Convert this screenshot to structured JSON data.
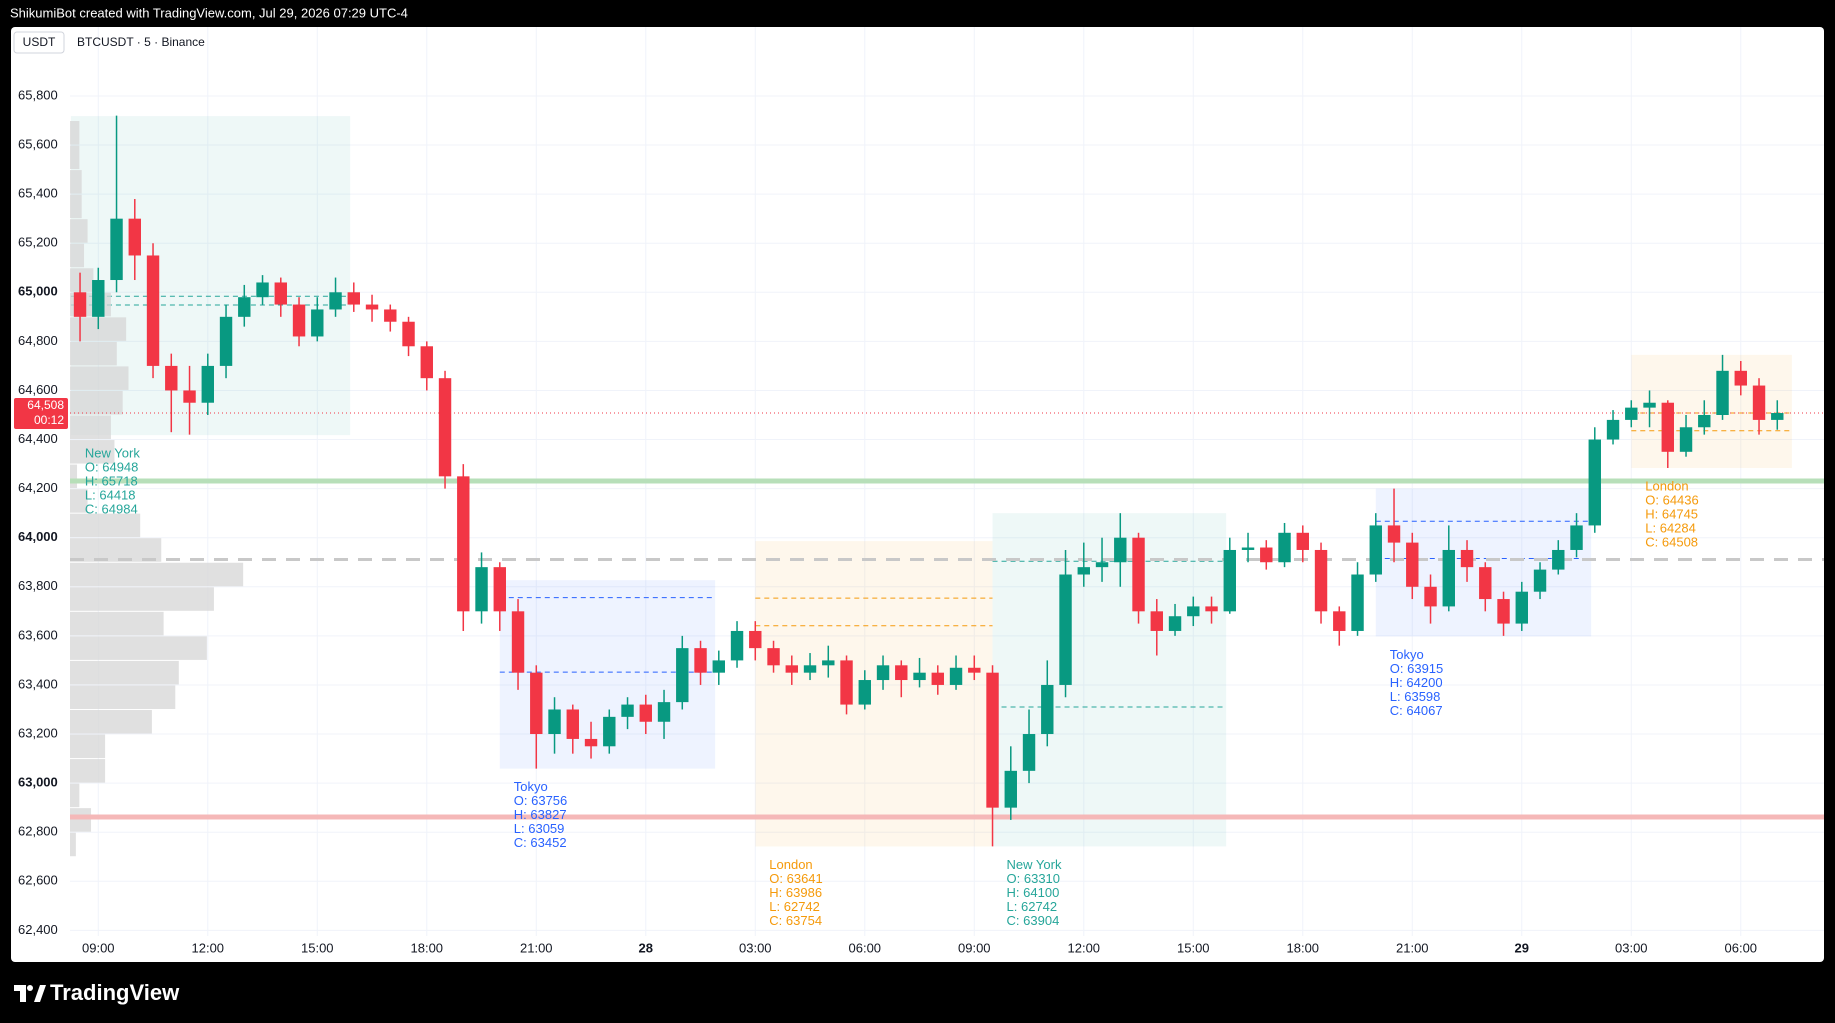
{
  "header": {
    "credit": "ShikumiBot created with TradingView.com, Jul 29, 2026 07:29 UTC-4",
    "currency": "USDT",
    "symbol": "BTCUSDT · 5 · Binance"
  },
  "footer": {
    "brand": "TradingView"
  },
  "chart_data": {
    "type": "candlestick",
    "colors": {
      "up": "#089981",
      "down": "#f23645"
    },
    "grid": true,
    "xlim": [
      -0.775,
      47.28
    ],
    "ylim": [
      62377,
      66081
    ],
    "xticks": [
      {
        "value": 0,
        "label": "09:00"
      },
      {
        "value": 3,
        "label": "12:00"
      },
      {
        "value": 6,
        "label": "15:00"
      },
      {
        "value": 9,
        "label": "18:00"
      },
      {
        "value": 12,
        "label": "21:00"
      },
      {
        "value": 15,
        "label": "28"
      },
      {
        "value": 18,
        "label": "03:00"
      },
      {
        "value": 21,
        "label": "06:00"
      },
      {
        "value": 24,
        "label": "09:00"
      },
      {
        "value": 27,
        "label": "12:00"
      },
      {
        "value": 30,
        "label": "15:00"
      },
      {
        "value": 33,
        "label": "18:00"
      },
      {
        "value": 36,
        "label": "21:00"
      },
      {
        "value": 39,
        "label": "29"
      },
      {
        "value": 42,
        "label": "03:00"
      },
      {
        "value": 45,
        "label": "06:00"
      }
    ],
    "yticks": [
      {
        "value": 62400,
        "label": "62,400"
      },
      {
        "value": 62600,
        "label": "62,600"
      },
      {
        "value": 62800,
        "label": "62,800"
      },
      {
        "value": 63000,
        "label": "63,000"
      },
      {
        "value": 63200,
        "label": "63,200"
      },
      {
        "value": 63400,
        "label": "63,400"
      },
      {
        "value": 63600,
        "label": "63,600"
      },
      {
        "value": 63800,
        "label": "63,800"
      },
      {
        "value": 64000,
        "label": "64,000"
      },
      {
        "value": 64200,
        "label": "64,200"
      },
      {
        "value": 64400,
        "label": "64,400"
      },
      {
        "value": 64600,
        "label": "64,600"
      },
      {
        "value": 64800,
        "label": "64,800"
      },
      {
        "value": 65000,
        "label": "65,000"
      },
      {
        "value": 65200,
        "label": "65,200"
      },
      {
        "value": 65400,
        "label": "65,400"
      },
      {
        "value": 65600,
        "label": "65,600"
      },
      {
        "value": 65800,
        "label": "65,800"
      }
    ],
    "x": [
      -0.5,
      0,
      0.5,
      1,
      1.5,
      2,
      2.5,
      3,
      3.5,
      4,
      4.5,
      5,
      5.5,
      6,
      6.5,
      7,
      7.5,
      8,
      8.5,
      9,
      9.5,
      10,
      10.5,
      11,
      11.5,
      12,
      12.5,
      13,
      13.5,
      14,
      14.5,
      15,
      15.5,
      16,
      16.5,
      17,
      17.5,
      18,
      18.5,
      19,
      19.5,
      20,
      20.5,
      21,
      21.5,
      22,
      22.5,
      23,
      23.5,
      24,
      24.5,
      25,
      25.5,
      26,
      26.5,
      27,
      27.5,
      28,
      28.5,
      29,
      29.5,
      30,
      30.5,
      31,
      31.5,
      32,
      32.5,
      33,
      33.5,
      34,
      34.5,
      35,
      35.5,
      36,
      36.5,
      37,
      37.5,
      38,
      38.5,
      39,
      39.5,
      40,
      40.5,
      41,
      41.5,
      42,
      42.5,
      43,
      43.5,
      44,
      44.5,
      45,
      45.5,
      46
    ],
    "ohlc": [
      [
        65000,
        65080,
        64800,
        64900
      ],
      [
        64900,
        65100,
        64850,
        65050
      ],
      [
        65050,
        65720,
        65000,
        65300
      ],
      [
        65300,
        65380,
        65050,
        65150
      ],
      [
        65150,
        65200,
        64650,
        64700
      ],
      [
        64700,
        64750,
        64430,
        64600
      ],
      [
        64600,
        64700,
        64420,
        64550
      ],
      [
        64550,
        64750,
        64500,
        64700
      ],
      [
        64700,
        64950,
        64650,
        64900
      ],
      [
        64900,
        65030,
        64860,
        64980
      ],
      [
        64980,
        65070,
        64950,
        65040
      ],
      [
        65040,
        65060,
        64900,
        64950
      ],
      [
        64950,
        64980,
        64780,
        64820
      ],
      [
        64820,
        64980,
        64800,
        64930
      ],
      [
        64930,
        65060,
        64900,
        65000
      ],
      [
        65000,
        65040,
        64920,
        64950
      ],
      [
        64950,
        64990,
        64880,
        64930
      ],
      [
        64930,
        64950,
        64840,
        64880
      ],
      [
        64880,
        64900,
        64740,
        64780
      ],
      [
        64780,
        64800,
        64600,
        64650
      ],
      [
        64650,
        64680,
        64200,
        64250
      ],
      [
        64250,
        64300,
        63620,
        63700
      ],
      [
        63700,
        63940,
        63650,
        63880
      ],
      [
        63880,
        63900,
        63620,
        63700
      ],
      [
        63700,
        63750,
        63380,
        63450
      ],
      [
        63450,
        63480,
        63059,
        63200
      ],
      [
        63200,
        63350,
        63120,
        63300
      ],
      [
        63300,
        63320,
        63120,
        63180
      ],
      [
        63180,
        63250,
        63100,
        63150
      ],
      [
        63150,
        63300,
        63120,
        63270
      ],
      [
        63270,
        63350,
        63220,
        63320
      ],
      [
        63320,
        63360,
        63200,
        63250
      ],
      [
        63250,
        63380,
        63180,
        63330
      ],
      [
        63330,
        63600,
        63300,
        63550
      ],
      [
        63550,
        63580,
        63400,
        63450
      ],
      [
        63450,
        63540,
        63400,
        63500
      ],
      [
        63500,
        63660,
        63470,
        63620
      ],
      [
        63620,
        63660,
        63500,
        63550
      ],
      [
        63550,
        63580,
        63450,
        63480
      ],
      [
        63480,
        63520,
        63400,
        63450
      ],
      [
        63450,
        63530,
        63420,
        63480
      ],
      [
        63480,
        63560,
        63430,
        63500
      ],
      [
        63500,
        63520,
        63280,
        63320
      ],
      [
        63320,
        63460,
        63300,
        63420
      ],
      [
        63420,
        63520,
        63380,
        63480
      ],
      [
        63480,
        63500,
        63350,
        63420
      ],
      [
        63420,
        63510,
        63390,
        63450
      ],
      [
        63450,
        63480,
        63360,
        63400
      ],
      [
        63400,
        63520,
        63380,
        63470
      ],
      [
        63470,
        63520,
        63420,
        63450
      ],
      [
        63450,
        63480,
        62742,
        62900
      ],
      [
        62900,
        63150,
        62850,
        63050
      ],
      [
        63050,
        63300,
        63000,
        63200
      ],
      [
        63200,
        63500,
        63150,
        63400
      ],
      [
        63400,
        63950,
        63350,
        63850
      ],
      [
        63850,
        63980,
        63800,
        63880
      ],
      [
        63880,
        64000,
        63820,
        63900
      ],
      [
        63900,
        64100,
        63800,
        64000
      ],
      [
        64000,
        64020,
        63650,
        63700
      ],
      [
        63700,
        63750,
        63520,
        63620
      ],
      [
        63620,
        63730,
        63600,
        63680
      ],
      [
        63680,
        63760,
        63640,
        63720
      ],
      [
        63720,
        63760,
        63650,
        63700
      ],
      [
        63700,
        64000,
        63690,
        63950
      ],
      [
        63950,
        64020,
        63900,
        63960
      ],
      [
        63960,
        63990,
        63870,
        63900
      ],
      [
        63900,
        64060,
        63880,
        64020
      ],
      [
        64020,
        64050,
        63900,
        63950
      ],
      [
        63950,
        63980,
        63650,
        63700
      ],
      [
        63700,
        63720,
        63560,
        63620
      ],
      [
        63620,
        63900,
        63600,
        63850
      ],
      [
        63850,
        64100,
        63820,
        64050
      ],
      [
        64050,
        64200,
        63900,
        63980
      ],
      [
        63980,
        64020,
        63750,
        63800
      ],
      [
        63800,
        63850,
        63650,
        63720
      ],
      [
        63720,
        64050,
        63700,
        63950
      ],
      [
        63950,
        63990,
        63820,
        63880
      ],
      [
        63880,
        63900,
        63700,
        63750
      ],
      [
        63750,
        63780,
        63600,
        63650
      ],
      [
        63650,
        63820,
        63620,
        63780
      ],
      [
        63780,
        63900,
        63750,
        63870
      ],
      [
        63870,
        63990,
        63850,
        63950
      ],
      [
        63950,
        64100,
        63920,
        64050
      ],
      [
        64050,
        64450,
        64020,
        64400
      ],
      [
        64400,
        64520,
        64380,
        64480
      ],
      [
        64480,
        64560,
        64450,
        64530
      ],
      [
        64530,
        64600,
        64450,
        64550
      ],
      [
        64550,
        64560,
        64284,
        64350
      ],
      [
        64350,
        64500,
        64330,
        64450
      ],
      [
        64450,
        64560,
        64420,
        64500
      ],
      [
        64500,
        64745,
        64480,
        64680
      ],
      [
        64680,
        64720,
        64580,
        64620
      ],
      [
        64620,
        64650,
        64420,
        64480
      ],
      [
        64480,
        64560,
        64440,
        64508
      ]
    ],
    "price_tag": {
      "value": 64508,
      "label": "64,508",
      "countdown": "00:12",
      "color": "#f23645"
    },
    "levels": [
      {
        "value": 64231,
        "color": "#b7dfb9"
      },
      {
        "value": 62862,
        "color": "#f5b8b8"
      },
      {
        "value": 63911,
        "color": "#c8c8c8",
        "dashed": true
      }
    ],
    "volume_profile": {
      "color": "#d6d6d6",
      "bins": [
        62700,
        62800,
        62900,
        63000,
        63100,
        63200,
        63300,
        63400,
        63500,
        63600,
        63700,
        63800,
        63900,
        64000,
        64100,
        64200,
        64300,
        64400,
        64500,
        64600,
        64700,
        64800,
        64900,
        65000,
        65100,
        65200,
        65300,
        65400,
        65500,
        65600,
        65700
      ],
      "values": [
        5,
        18,
        8,
        30,
        30,
        70,
        90,
        93,
        117,
        80,
        123,
        148,
        78,
        60,
        15,
        6,
        38,
        35,
        45,
        50,
        40,
        48,
        35,
        20,
        12,
        15,
        10,
        10,
        8,
        8
      ]
    },
    "sessions": [
      {
        "name": "New York",
        "color": "#26a69a",
        "start": -0.75,
        "end": 6.9,
        "open": {
          "value": 64948,
          "label": "O: 64948"
        },
        "high": {
          "value": 65718,
          "label": "H: 65718"
        },
        "low": {
          "value": 64418,
          "label": "L: 64418"
        },
        "close": {
          "value": 64984,
          "label": "C: 64984"
        }
      },
      {
        "name": "Tokyo",
        "color": "#2962ff",
        "start": 11.0,
        "end": 16.9,
        "open": {
          "value": 63756,
          "label": "O: 63756"
        },
        "high": {
          "value": 63827,
          "label": "H: 63827"
        },
        "low": {
          "value": 63059,
          "label": "L: 63059"
        },
        "close": {
          "value": 63452,
          "label": "C: 63452"
        }
      },
      {
        "name": "London",
        "color": "#f59a0b",
        "start": 18.0,
        "end": 24.5,
        "open": {
          "value": 63641,
          "label": "O: 63641"
        },
        "high": {
          "value": 63986,
          "label": "H: 63986"
        },
        "low": {
          "value": 62742,
          "label": "L: 62742"
        },
        "close": {
          "value": 63754,
          "label": "C: 63754"
        }
      },
      {
        "name": "New York",
        "color": "#26a69a",
        "start": 24.5,
        "end": 30.9,
        "open": {
          "value": 63310,
          "label": "O: 63310"
        },
        "high": {
          "value": 64100,
          "label": "H: 64100"
        },
        "low": {
          "value": 62742,
          "label": "L: 62742"
        },
        "close": {
          "value": 63904,
          "label": "C: 63904"
        }
      },
      {
        "name": "Tokyo",
        "color": "#2962ff",
        "start": 35.0,
        "end": 40.9,
        "open": {
          "value": 63915,
          "label": "O: 63915"
        },
        "high": {
          "value": 64200,
          "label": "H: 64200"
        },
        "low": {
          "value": 63598,
          "label": "L: 63598"
        },
        "close": {
          "value": 64067,
          "label": "C: 64067"
        }
      },
      {
        "name": "London",
        "color": "#f59a0b",
        "start": 42.0,
        "end": 46.4,
        "open": {
          "value": 64436,
          "label": "O: 64436"
        },
        "high": {
          "value": 64745,
          "label": "H: 64745"
        },
        "low": {
          "value": 64284,
          "label": "L: 64284"
        },
        "close": {
          "value": 64508,
          "label": "C: 64508"
        }
      }
    ]
  }
}
